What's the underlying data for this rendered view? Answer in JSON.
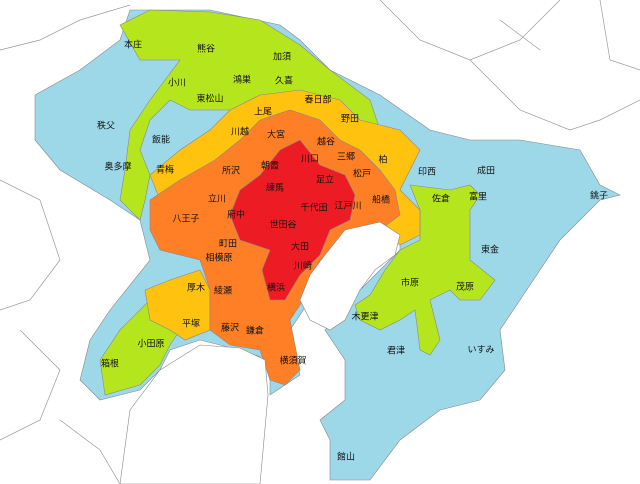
{
  "colors": {
    "level_1": "#9dd8e9",
    "level_2": "#b5e61d",
    "level_3": "#ffc20e",
    "level_4": "#ff7f27",
    "level_5": "#ed1c24",
    "sea": "#ffffff",
    "outside": "#ffffff"
  },
  "labels": [
    {
      "name": "本庄"
    },
    {
      "name": "熊谷"
    },
    {
      "name": "加須"
    },
    {
      "name": "小川"
    },
    {
      "name": "鴻巣"
    },
    {
      "name": "久喜"
    },
    {
      "name": "東松山"
    },
    {
      "name": "春日部"
    },
    {
      "name": "秩父"
    },
    {
      "name": "上尾"
    },
    {
      "name": "野田"
    },
    {
      "name": "川越"
    },
    {
      "name": "飯能"
    },
    {
      "name": "大宮"
    },
    {
      "name": "越谷"
    },
    {
      "name": "奥多摩"
    },
    {
      "name": "青梅"
    },
    {
      "name": "所沢"
    },
    {
      "name": "朝霞"
    },
    {
      "name": "川口"
    },
    {
      "name": "三郷"
    },
    {
      "name": "柏"
    },
    {
      "name": "松戸"
    },
    {
      "name": "足立"
    },
    {
      "name": "練馬"
    },
    {
      "name": "立川"
    },
    {
      "name": "八王子"
    },
    {
      "name": "府中"
    },
    {
      "name": "千代田"
    },
    {
      "name": "江戸川"
    },
    {
      "name": "印西"
    },
    {
      "name": "成田"
    },
    {
      "name": "銚子"
    },
    {
      "name": "佐倉"
    },
    {
      "name": "船橋"
    },
    {
      "name": "富里"
    },
    {
      "name": "世田谷"
    },
    {
      "name": "町田"
    },
    {
      "name": "大田"
    },
    {
      "name": "東金"
    },
    {
      "name": "相模原"
    },
    {
      "name": "川崎"
    },
    {
      "name": "厚木"
    },
    {
      "name": "綾瀬"
    },
    {
      "name": "横浜"
    },
    {
      "name": "市原"
    },
    {
      "name": "茂原"
    },
    {
      "name": "木更津"
    },
    {
      "name": "平塚"
    },
    {
      "name": "藤沢"
    },
    {
      "name": "鎌倉"
    },
    {
      "name": "小田原"
    },
    {
      "name": "君津"
    },
    {
      "name": "いすみ"
    },
    {
      "name": "箱根"
    },
    {
      "name": "横須賀"
    },
    {
      "name": "館山"
    }
  ]
}
